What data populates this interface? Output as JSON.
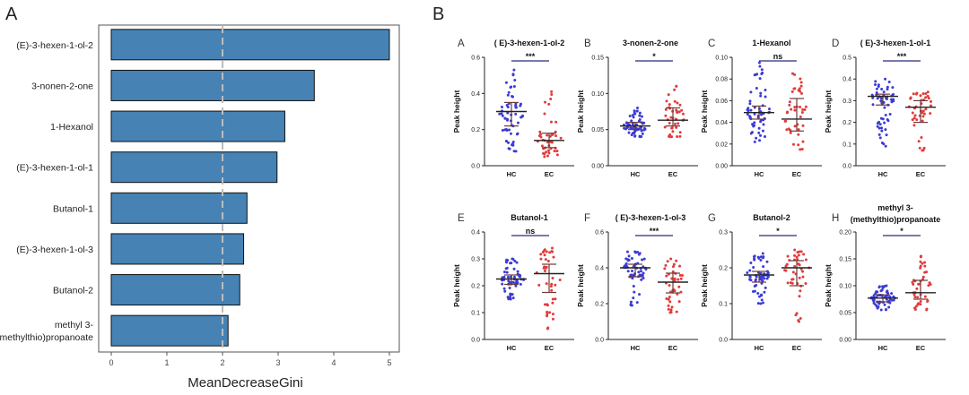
{
  "panels": {
    "A": "A",
    "B": "B"
  },
  "chart_data": [
    {
      "type": "bar",
      "orientation": "horizontal",
      "categories": [
        "(E)-3-hexen-1-ol-2",
        "3-nonen-2-one",
        "1-Hexanol",
        "(E)-3-hexen-1-ol-1",
        "Butanol-1",
        "(E)-3-hexen-1-ol-3",
        "Butanol-2",
        "methyl 3-(methylthio)propanoate"
      ],
      "category_lines": [
        [
          "(E)-3-hexen-1-ol-2"
        ],
        [
          "3-nonen-2-one"
        ],
        [
          "1-Hexanol"
        ],
        [
          "(E)-3-hexen-1-ol-1"
        ],
        [
          "Butanol-1"
        ],
        [
          "(E)-3-hexen-1-ol-3"
        ],
        [
          "Butanol-2"
        ],
        [
          "methyl 3-",
          "(methylthio)propanoate"
        ]
      ],
      "values": [
        5.0,
        3.65,
        3.12,
        2.98,
        2.44,
        2.38,
        2.31,
        2.1
      ],
      "xlabel": "MeanDecreaseGini",
      "xlim": [
        0,
        5.2
      ],
      "xticks": [
        0,
        1,
        2,
        3,
        4,
        5
      ],
      "reference_line_x": 2,
      "bar_color": "#4682B4"
    },
    {
      "type": "scatter",
      "subplots": [
        {
          "letter": "A",
          "title": [
            "( E)-3-hexen-1-ol-2"
          ],
          "sig": "***",
          "ylim": [
            0,
            0.6
          ],
          "yticks": [
            "0.0",
            "0.2",
            "0.4",
            "0.6"
          ],
          "groups": [
            {
              "name": "HC",
              "median": 0.3,
              "q1": 0.22,
              "q3": 0.35,
              "min": 0.08,
              "max": 0.53,
              "n": 60
            },
            {
              "name": "EC",
              "median": 0.14,
              "q1": 0.1,
              "q3": 0.18,
              "min": 0.05,
              "max": 0.41,
              "n": 42
            }
          ]
        },
        {
          "letter": "B",
          "title": [
            "3-nonen-2-one"
          ],
          "sig": "*",
          "ylim": [
            0,
            0.15
          ],
          "yticks": [
            "0.00",
            "0.05",
            "0.10",
            "0.15"
          ],
          "groups": [
            {
              "name": "HC",
              "median": 0.055,
              "q1": 0.05,
              "q3": 0.06,
              "min": 0.04,
              "max": 0.08,
              "n": 60
            },
            {
              "name": "EC",
              "median": 0.063,
              "q1": 0.055,
              "q3": 0.08,
              "min": 0.04,
              "max": 0.11,
              "n": 42
            }
          ]
        },
        {
          "letter": "C",
          "title": [
            "1-Hexanol"
          ],
          "sig": "ns",
          "ylim": [
            0,
            0.1
          ],
          "yticks": [
            "0.00",
            "0.02",
            "0.04",
            "0.06",
            "0.08",
            "0.10"
          ],
          "groups": [
            {
              "name": "HC",
              "median": 0.049,
              "q1": 0.043,
              "q3": 0.055,
              "min": 0.022,
              "max": 0.095,
              "n": 60
            },
            {
              "name": "EC",
              "median": 0.043,
              "q1": 0.032,
              "q3": 0.062,
              "min": 0.015,
              "max": 0.085,
              "n": 42
            }
          ]
        },
        {
          "letter": "D",
          "title": [
            "( E)-3-hexen-1-ol-1"
          ],
          "sig": "***",
          "ylim": [
            0,
            0.5
          ],
          "yticks": [
            "0.0",
            "0.1",
            "0.2",
            "0.3",
            "0.4",
            "0.5"
          ],
          "groups": [
            {
              "name": "HC",
              "median": 0.32,
              "q1": 0.28,
              "q3": 0.33,
              "min": 0.09,
              "max": 0.4,
              "n": 60
            },
            {
              "name": "EC",
              "median": 0.27,
              "q1": 0.2,
              "q3": 0.3,
              "min": 0.07,
              "max": 0.34,
              "n": 42
            }
          ]
        },
        {
          "letter": "E",
          "title": [
            "Butanol-1"
          ],
          "sig": "ns",
          "ylim": [
            0,
            0.4
          ],
          "yticks": [
            "0.0",
            "0.1",
            "0.2",
            "0.3",
            "0.4"
          ],
          "groups": [
            {
              "name": "HC",
              "median": 0.225,
              "q1": 0.205,
              "q3": 0.24,
              "min": 0.15,
              "max": 0.3,
              "n": 60
            },
            {
              "name": "EC",
              "median": 0.245,
              "q1": 0.175,
              "q3": 0.28,
              "min": 0.04,
              "max": 0.34,
              "n": 42
            }
          ]
        },
        {
          "letter": "F",
          "title": [
            "( E)-3-hexen-1-ol-3"
          ],
          "sig": "***",
          "ylim": [
            0,
            0.6
          ],
          "yticks": [
            "0.0",
            "0.2",
            "0.4",
            "0.6"
          ],
          "groups": [
            {
              "name": "HC",
              "median": 0.4,
              "q1": 0.35,
              "q3": 0.42,
              "min": 0.19,
              "max": 0.49,
              "n": 60
            },
            {
              "name": "EC",
              "median": 0.32,
              "q1": 0.26,
              "q3": 0.37,
              "min": 0.15,
              "max": 0.45,
              "n": 42
            }
          ]
        },
        {
          "letter": "G",
          "title": [
            "Butanol-2"
          ],
          "sig": "*",
          "ylim": [
            0,
            0.3
          ],
          "yticks": [
            "0.0",
            "0.1",
            "0.2",
            "0.3"
          ],
          "groups": [
            {
              "name": "HC",
              "median": 0.18,
              "q1": 0.16,
              "q3": 0.19,
              "min": 0.1,
              "max": 0.24,
              "n": 60
            },
            {
              "name": "EC",
              "median": 0.2,
              "q1": 0.15,
              "q3": 0.22,
              "min": 0.05,
              "max": 0.25,
              "n": 42
            }
          ]
        },
        {
          "letter": "H",
          "title": [
            "methyl 3-",
            "(methylthio)propanoate"
          ],
          "sig": "*",
          "ylim": [
            0,
            0.2
          ],
          "yticks": [
            "0.00",
            "0.05",
            "0.10",
            "0.15",
            "0.20"
          ],
          "groups": [
            {
              "name": "HC",
              "median": 0.077,
              "q1": 0.07,
              "q3": 0.083,
              "min": 0.055,
              "max": 0.1,
              "n": 60
            },
            {
              "name": "EC",
              "median": 0.087,
              "q1": 0.075,
              "q3": 0.11,
              "min": 0.055,
              "max": 0.155,
              "n": 42
            }
          ]
        }
      ],
      "ylabel": "Peak height",
      "group_colors": {
        "HC": "#3b3bd6",
        "EC": "#e23b3b"
      },
      "errorbar_color": "#6d3a3a",
      "sig_color": "#2a2a7a"
    }
  ]
}
